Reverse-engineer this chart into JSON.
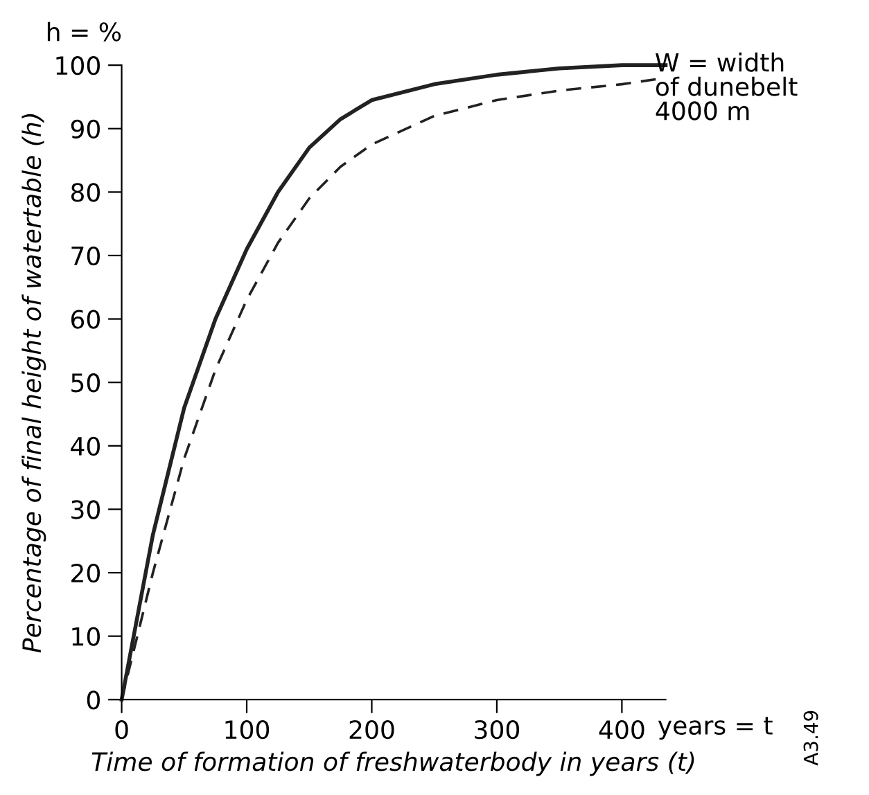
{
  "chart_data": {
    "type": "line",
    "xlabel": "Time of formation of freshwaterbody in years (t)",
    "ylabel": "Percentage of final height of watertable (h)",
    "xlim": [
      0,
      435
    ],
    "ylim": [
      0,
      100
    ],
    "xticks": [
      0,
      100,
      200,
      300,
      400
    ],
    "yticks": [
      0,
      10,
      20,
      30,
      40,
      50,
      60,
      70,
      80,
      90,
      100
    ],
    "grid": false,
    "legend": false,
    "marker": "none",
    "series": [
      {
        "color": "#222222",
        "line_style": "solid",
        "x": [
          0,
          25,
          50,
          75,
          100,
          125,
          150,
          175,
          200,
          250,
          300,
          350,
          400,
          435
        ],
        "values": [
          0,
          26,
          46,
          60,
          71,
          80,
          87,
          91.5,
          94.5,
          97,
          98.5,
          99.5,
          100,
          100
        ]
      },
      {
        "color": "#222222",
        "line_style": "dashed",
        "x": [
          0,
          25,
          50,
          75,
          100,
          125,
          150,
          175,
          200,
          250,
          300,
          350,
          400,
          435
        ],
        "values": [
          0,
          20,
          38,
          52,
          63,
          72,
          79,
          84,
          87.5,
          92,
          94.5,
          96,
          97,
          98
        ]
      }
    ],
    "annotations": [
      "h = %",
      "W = width\nof dunebelt\n4000 m",
      "years = t",
      "A3.49"
    ]
  }
}
